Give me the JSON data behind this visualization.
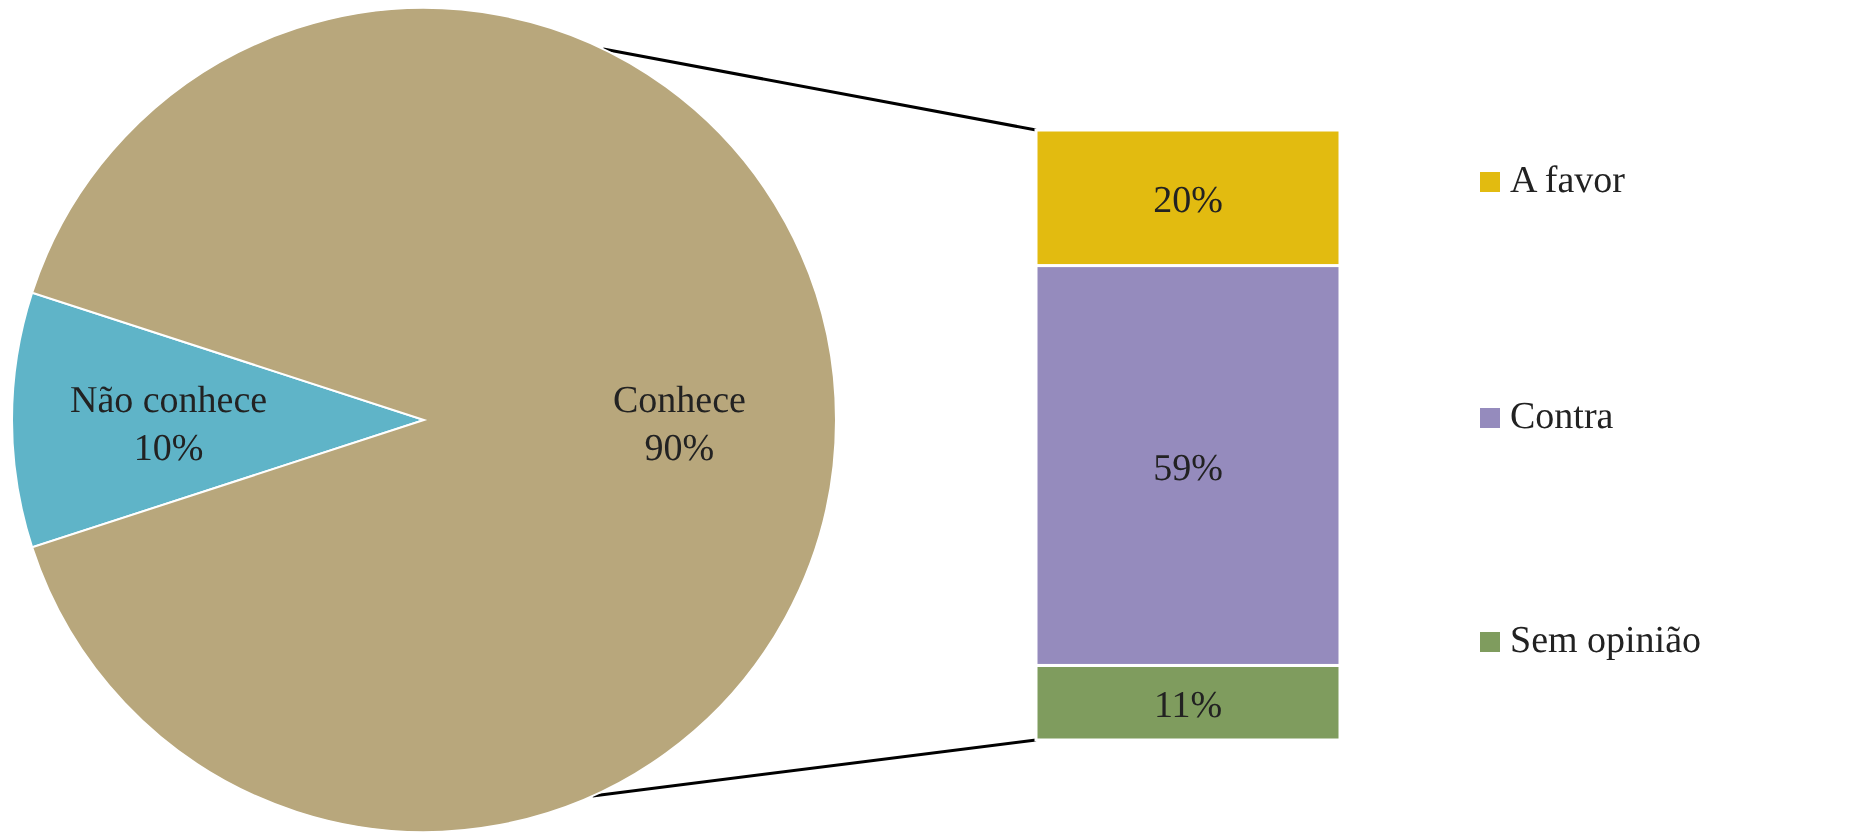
{
  "chart_data": [
    {
      "type": "pie",
      "categories": [
        "Não conhece",
        "Conhece"
      ],
      "values": [
        10,
        90
      ],
      "colors": [
        "#5fb4c8",
        "#b8a77c"
      ],
      "value_labels": [
        "10%",
        "90%"
      ]
    },
    {
      "type": "bar",
      "stacked": true,
      "categories": [
        null
      ],
      "legend": "right",
      "series": [
        {
          "name": "Sem opinião",
          "color": "#7f9c5e",
          "values": [
            11
          ],
          "value_labels": [
            "11%"
          ]
        },
        {
          "name": "Contra",
          "color": "#958bbd",
          "values": [
            59
          ],
          "value_labels": [
            "59%"
          ]
        },
        {
          "name": "A favor",
          "color": "#e2bb10",
          "values": [
            20
          ],
          "value_labels": [
            "20%"
          ]
        }
      ]
    }
  ]
}
